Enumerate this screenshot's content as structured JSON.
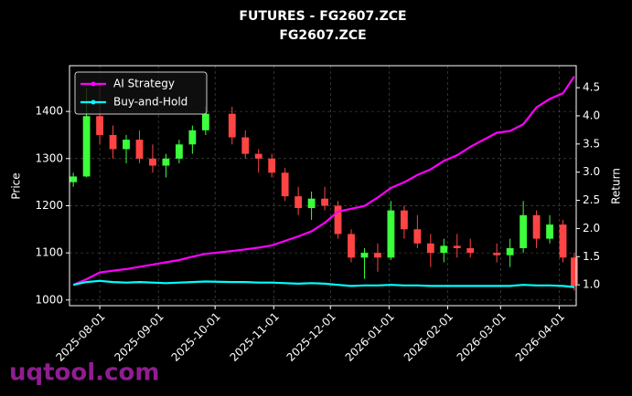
{
  "chart_data": {
    "type": "candlestick",
    "title": "FUTURES - FG2607.ZCE",
    "subtitle": "FG2607.ZCE",
    "ylabel": "Price",
    "y2label": "Return",
    "watermark": "uqtool.com",
    "legend": "upper left",
    "grid": true,
    "up_color": "#3cff3c",
    "down_color": "#ff4444",
    "xlim": [
      "2025-07-16",
      "2026-04-10"
    ],
    "xticks": [
      "2025-08-01",
      "2025-09-01",
      "2025-10-01",
      "2025-11-01",
      "2025-12-01",
      "2026-01-01",
      "2026-02-01",
      "2026-03-01",
      "2026-04-01"
    ],
    "ylim": [
      988,
      1497
    ],
    "yticks": [
      1000,
      1100,
      1200,
      1300,
      1400
    ],
    "y2lim": [
      0.63,
      4.89
    ],
    "y2ticks": [
      {
        "value": 1,
        "label": "1.0"
      },
      1.5,
      {
        "value": 2,
        "label": "2.0"
      },
      2.5,
      {
        "value": 3,
        "label": "3.0"
      },
      3.5,
      {
        "value": 4,
        "label": "4.0"
      },
      4.5
    ],
    "x": [
      "2025-07-18",
      "2025-07-25",
      "2025-08-01",
      "2025-08-08",
      "2025-08-15",
      "2025-08-22",
      "2025-08-29",
      "2025-09-05",
      "2025-09-12",
      "2025-09-19",
      "2025-09-26",
      "2025-10-10",
      "2025-10-17",
      "2025-10-24",
      "2025-10-31",
      "2025-11-07",
      "2025-11-14",
      "2025-11-21",
      "2025-11-28",
      "2025-12-05",
      "2025-12-12",
      "2025-12-19",
      "2025-12-26",
      "2026-01-02",
      "2026-01-09",
      "2026-01-16",
      "2026-01-23",
      "2026-01-30",
      "2026-02-06",
      "2026-02-13",
      "2026-02-27",
      "2026-03-06",
      "2026-03-13",
      "2026-03-20",
      "2026-03-27",
      "2026-04-03",
      "2026-04-09"
    ],
    "open": [
      1250,
      1262,
      1390,
      1350,
      1320,
      1340,
      1300,
      1285,
      1300,
      1330,
      1360,
      1395,
      1345,
      1310,
      1300,
      1270,
      1220,
      1195,
      1215,
      1200,
      1140,
      1090,
      1100,
      1090,
      1190,
      1150,
      1120,
      1100,
      1115,
      1110,
      1100,
      1095,
      1110,
      1180,
      1130,
      1160,
      1090
    ],
    "high": [
      1270,
      1450,
      1460,
      1370,
      1350,
      1360,
      1330,
      1310,
      1340,
      1370,
      1410,
      1410,
      1360,
      1320,
      1310,
      1280,
      1240,
      1230,
      1240,
      1210,
      1150,
      1110,
      1120,
      1210,
      1200,
      1180,
      1140,
      1130,
      1140,
      1130,
      1120,
      1130,
      1210,
      1190,
      1180,
      1170,
      1100
    ],
    "low": [
      1240,
      1260,
      1330,
      1300,
      1290,
      1290,
      1270,
      1260,
      1290,
      1310,
      1350,
      1330,
      1300,
      1270,
      1260,
      1210,
      1180,
      1170,
      1190,
      1130,
      1080,
      1045,
      1060,
      1085,
      1130,
      1110,
      1070,
      1080,
      1090,
      1090,
      1080,
      1070,
      1100,
      1110,
      1120,
      1080,
      1020
    ],
    "close": [
      1262,
      1390,
      1350,
      1320,
      1340,
      1300,
      1285,
      1300,
      1330,
      1360,
      1395,
      1345,
      1310,
      1300,
      1270,
      1220,
      1195,
      1215,
      1200,
      1140,
      1090,
      1100,
      1090,
      1190,
      1150,
      1120,
      1100,
      1115,
      1110,
      1100,
      1095,
      1110,
      1180,
      1130,
      1160,
      1090,
      1030
    ],
    "series": [
      {
        "name": "AI Strategy",
        "color": "#ff00ff",
        "axis": "y2",
        "values": [
          1.0,
          1.1,
          1.22,
          1.25,
          1.28,
          1.32,
          1.36,
          1.4,
          1.44,
          1.5,
          1.55,
          1.6,
          1.63,
          1.66,
          1.7,
          1.78,
          1.86,
          1.95,
          2.1,
          2.3,
          2.35,
          2.4,
          2.55,
          2.72,
          2.82,
          2.95,
          3.05,
          3.2,
          3.3,
          3.45,
          3.7,
          3.73,
          3.85,
          4.15,
          4.3,
          4.4,
          4.7
        ]
      },
      {
        "name": "Buy-and-Hold",
        "color": "#00ffff",
        "axis": "y2",
        "values": [
          1.0,
          1.05,
          1.07,
          1.05,
          1.04,
          1.05,
          1.04,
          1.03,
          1.04,
          1.05,
          1.06,
          1.05,
          1.05,
          1.04,
          1.04,
          1.03,
          1.02,
          1.03,
          1.02,
          1.0,
          0.98,
          0.99,
          0.99,
          1.0,
          0.99,
          0.99,
          0.98,
          0.98,
          0.98,
          0.98,
          0.98,
          0.98,
          1.0,
          0.99,
          0.99,
          0.98,
          0.96
        ]
      }
    ]
  }
}
